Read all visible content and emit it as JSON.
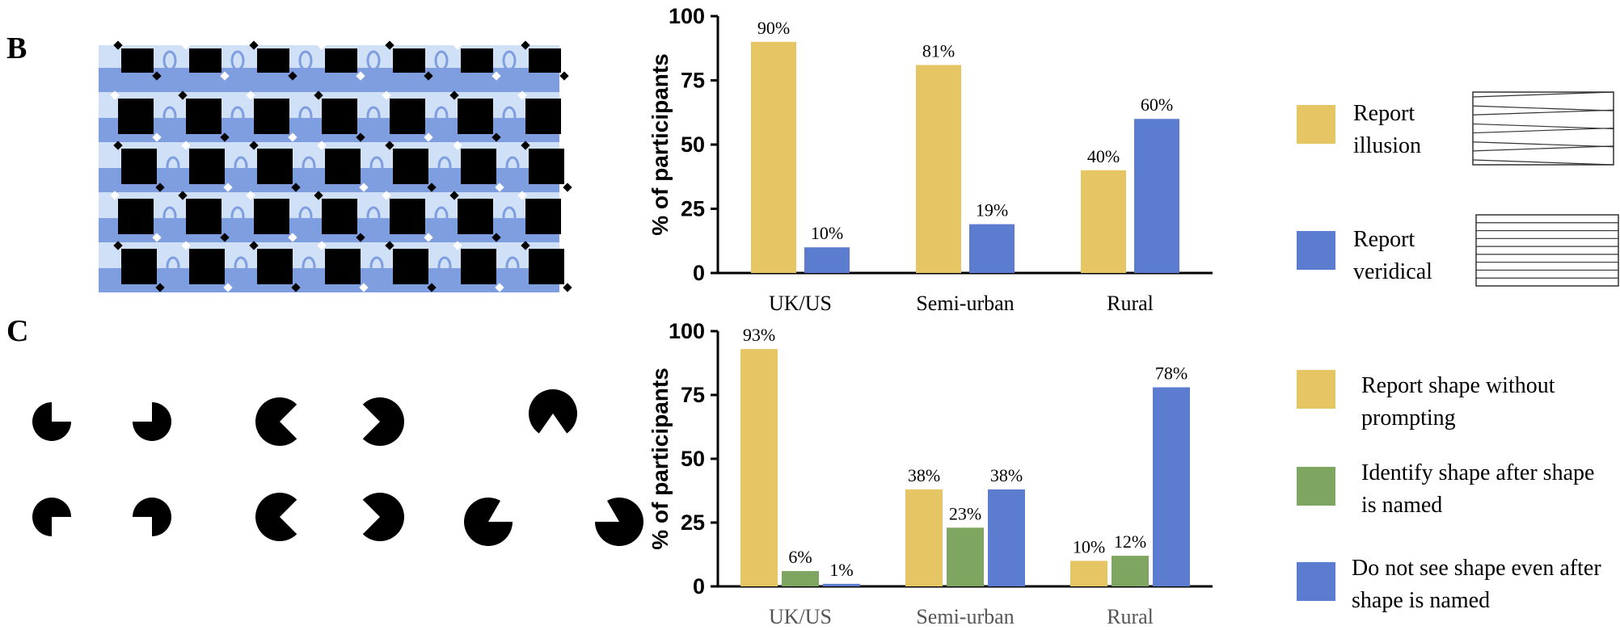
{
  "panels": {
    "b": "B",
    "c": "C"
  },
  "colors": {
    "yellow": "#e6c565",
    "blue": "#5b7ccf",
    "green": "#7fa660",
    "pattern_blue": "#7e9ee0",
    "pattern_light": "#cfe0f7"
  },
  "legend_b": [
    {
      "label": "Report illusion",
      "color": "#e6c565",
      "icon": "converging-lines-icon"
    },
    {
      "label": "Report veridical",
      "color": "#5b7ccf",
      "icon": "parallel-lines-icon"
    }
  ],
  "legend_c": [
    {
      "label": "Report shape without prompting",
      "color": "#e6c565"
    },
    {
      "label": "Identify shape after shape is named",
      "color": "#7fa660"
    },
    {
      "label": "Do not see shape even after shape is named",
      "color": "#5b7ccf"
    }
  ],
  "chart_data": [
    {
      "type": "bar",
      "ylabel": "% of participants",
      "ylim": [
        0,
        100
      ],
      "yticks": [
        0,
        25,
        50,
        75,
        100
      ],
      "categories": [
        "UK/US",
        "Semi-urban",
        "Rural"
      ],
      "series": [
        {
          "name": "Report illusion",
          "color": "#e6c565",
          "values": [
            90,
            81,
            40
          ],
          "labels": [
            "90%",
            "81%",
            "40%"
          ]
        },
        {
          "name": "Report veridical",
          "color": "#5b7ccf",
          "values": [
            10,
            19,
            60
          ],
          "labels": [
            "10%",
            "19%",
            "60%"
          ]
        }
      ]
    },
    {
      "type": "bar",
      "ylabel": "% of participants",
      "ylim": [
        0,
        100
      ],
      "yticks": [
        0,
        25,
        50,
        75,
        100
      ],
      "categories": [
        "UK/US",
        "Semi-urban",
        "Rural"
      ],
      "series": [
        {
          "name": "Report shape without prompting",
          "color": "#e6c565",
          "values": [
            93,
            38,
            10
          ],
          "labels": [
            "93%",
            "38%",
            "10%"
          ]
        },
        {
          "name": "Identify shape after shape is named",
          "color": "#7fa660",
          "values": [
            6,
            23,
            12
          ],
          "labels": [
            "6%",
            "23%",
            "12%"
          ]
        },
        {
          "name": "Do not see shape even after shape is named",
          "color": "#5b7ccf",
          "values": [
            1,
            38,
            78
          ],
          "labels": [
            "1%",
            "38%",
            "78%"
          ]
        }
      ]
    }
  ]
}
